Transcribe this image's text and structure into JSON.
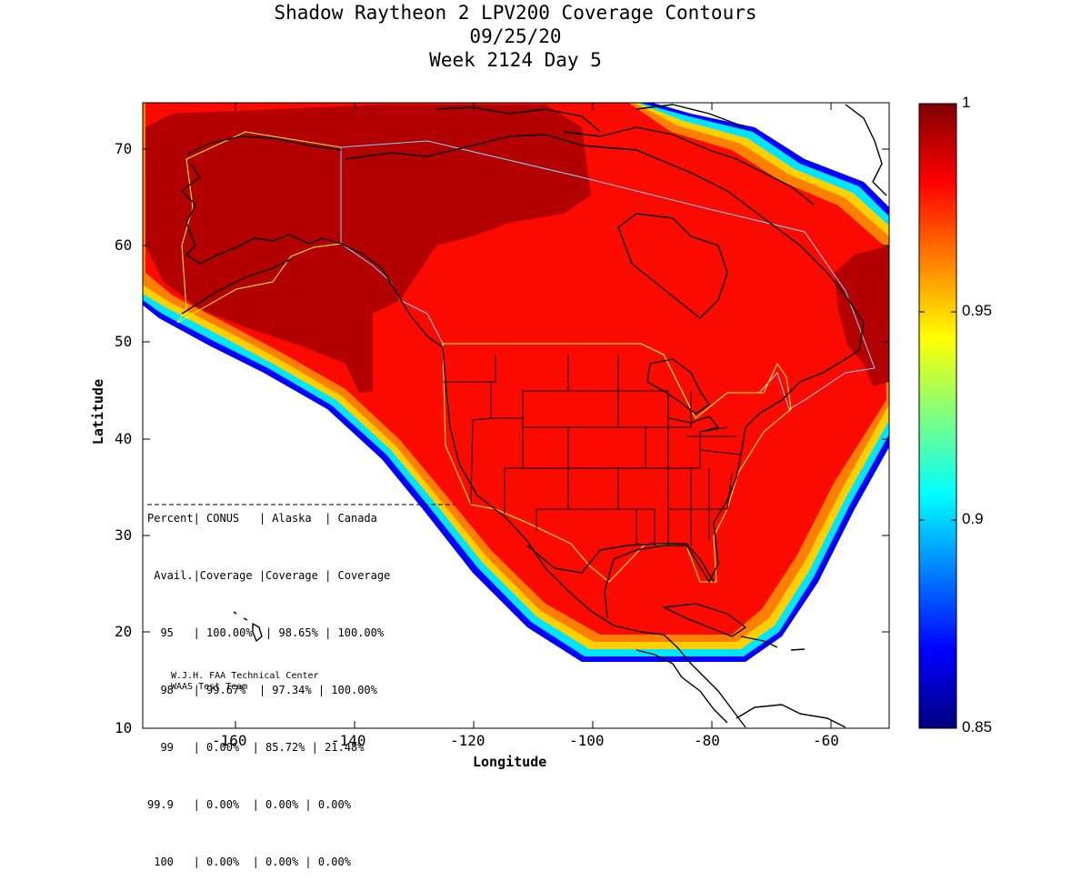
{
  "title": {
    "line1": "Shadow Raytheon 2 LPV200 Coverage Contours",
    "line2": "09/25/20",
    "line3": "Week 2124 Day 5"
  },
  "axes": {
    "xlabel": "Longitude",
    "ylabel": "Latitude",
    "x_ticks": [
      "-160",
      "-140",
      "-120",
      "-100",
      "-80",
      "-60"
    ],
    "y_ticks": [
      "70",
      "60",
      "50",
      "40",
      "30",
      "20",
      "10"
    ],
    "xlim": [
      -175,
      -50
    ],
    "ylim": [
      10,
      75
    ]
  },
  "colorbar": {
    "ticks": [
      "1",
      "0.95",
      "0.9",
      "0.85"
    ],
    "range": [
      0.85,
      1.0
    ],
    "colormap": "jet",
    "colors": [
      "#00007f",
      "#0000ff",
      "#007fff",
      "#00ffff",
      "#7fff7f",
      "#ffff00",
      "#ff7f00",
      "#ff0000",
      "#7f0000"
    ]
  },
  "table": {
    "header1": "Percent| CONUS   | Alaska  | Canada",
    "header2": " Avail.|Coverage |Coverage | Coverage",
    "rows": [
      "  95   | 100.00%  | 98.65% | 100.00%",
      "  98   | 99.67%  | 97.34% | 100.00%",
      "  99   | 0.00%  | 85.72% | 21.48%",
      "99.9   | 0.00%  | 0.00% | 0.00%",
      " 100   | 0.00%  | 0.00% | 0.00%"
    ]
  },
  "credit": {
    "line1": "W.J.H. FAA Technical Center",
    "line2": "WAAS Test Team"
  }
}
